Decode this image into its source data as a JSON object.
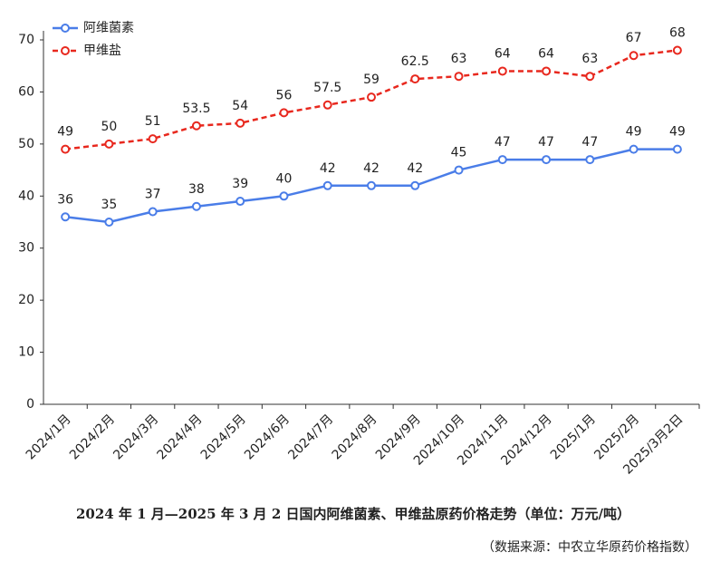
{
  "chart_data": {
    "type": "line",
    "categories": [
      "2024/1月",
      "2024/2月",
      "2024/3月",
      "2024/4月",
      "2024/5月",
      "2024/6月",
      "2024/7月",
      "2024/8月",
      "2024/9月",
      "2024/10月",
      "2024/11月",
      "2024/12月",
      "2025/1月",
      "2025/2月",
      "2025/3月2日"
    ],
    "series": [
      {
        "name": "阿维菌素",
        "color": "#4a7de8",
        "dashed": false,
        "values": [
          36,
          35,
          37,
          38,
          39,
          40,
          42,
          42,
          42,
          45,
          47,
          47,
          47,
          49,
          49
        ]
      },
      {
        "name": "甲维盐",
        "color": "#e8281e",
        "dashed": true,
        "values": [
          49,
          50,
          51,
          53.5,
          54,
          56,
          57.5,
          59,
          62.5,
          63,
          64,
          64,
          63,
          67,
          68
        ]
      }
    ],
    "ylim": [
      0,
      70
    ],
    "yticks": [
      0,
      10,
      20,
      30,
      40,
      50,
      60,
      70
    ],
    "grid": false,
    "legend": "top-left",
    "caption": "2024 年 1 月—2025 年 3 月 2 日国内阿维菌素、甲维盐原药价格走势（单位：万元/吨）",
    "source": "（数据来源：中农立华原药价格指数）"
  }
}
